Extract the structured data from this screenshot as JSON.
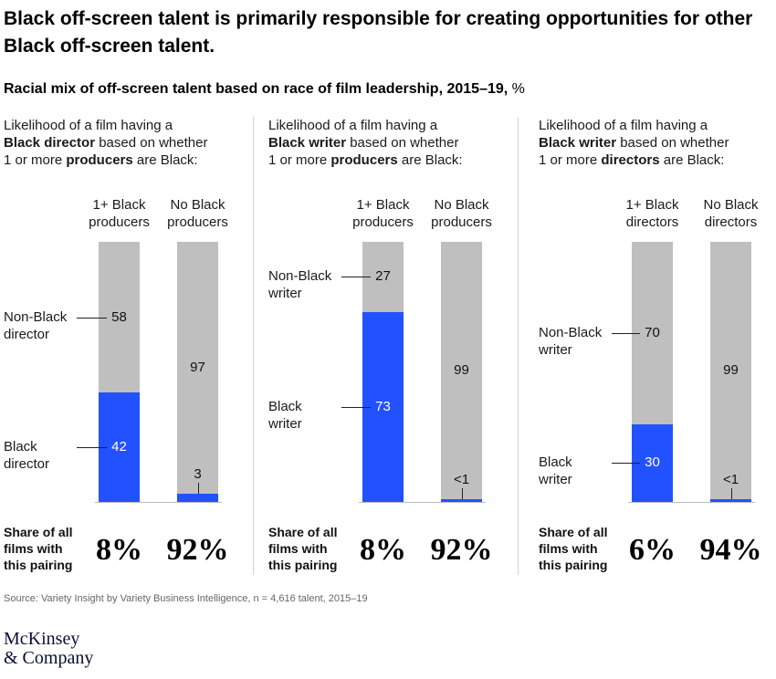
{
  "title": "Black off-screen talent is primarily responsible for creating opportunities for other Black off-screen talent.",
  "subtitle": {
    "bold": "Racial mix of off-screen talent based on race of film leadership, 2015–19,",
    "unit": " %"
  },
  "share_label": [
    "Share of all",
    "films with",
    "this pairing"
  ],
  "source": "Source: Variety Insight by Variety Business Intelligence, n = 4,616 talent, 2015–19",
  "logo": [
    "McKinsey",
    "& Company"
  ],
  "colors": {
    "black_segment": "#2251ff",
    "non_black_segment": "#bfbfbf"
  },
  "chart_data": [
    {
      "type": "bar",
      "stacked": true,
      "description": {
        "l1": "Likelihood of a film having a",
        "l2_bold": "Black director",
        "l2_rest": " based on whether",
        "l3_pre": "1 or more ",
        "l3_bold": "producers",
        "l3_post": " are Black:"
      },
      "categories": [
        [
          "1+ Black",
          "producers"
        ],
        [
          "No Black",
          "producers"
        ]
      ],
      "series": [
        {
          "name": "Non-Black director",
          "label_lines": [
            "Non-Black",
            "director"
          ],
          "values": [
            58,
            97
          ],
          "value_labels": [
            "58",
            "97"
          ]
        },
        {
          "name": "Black director",
          "label_lines": [
            "Black",
            "director"
          ],
          "values": [
            42,
            3
          ],
          "value_labels": [
            "42",
            "3"
          ]
        }
      ],
      "share_of_films": [
        "8%",
        "92%"
      ],
      "ylim": [
        0,
        100
      ]
    },
    {
      "type": "bar",
      "stacked": true,
      "description": {
        "l1": "Likelihood of a film having a",
        "l2_bold": "Black writer",
        "l2_rest": " based on whether",
        "l3_pre": "1 or more ",
        "l3_bold": "producers",
        "l3_post": " are Black:"
      },
      "categories": [
        [
          "1+ Black",
          "producers"
        ],
        [
          "No Black",
          "producers"
        ]
      ],
      "series": [
        {
          "name": "Non-Black writer",
          "label_lines": [
            "Non-Black",
            "writer"
          ],
          "values": [
            27,
            99
          ],
          "value_labels": [
            "27",
            "99"
          ]
        },
        {
          "name": "Black writer",
          "label_lines": [
            "Black",
            "writer"
          ],
          "values": [
            73,
            1
          ],
          "value_labels": [
            "73",
            "<1"
          ]
        }
      ],
      "share_of_films": [
        "8%",
        "92%"
      ],
      "ylim": [
        0,
        100
      ]
    },
    {
      "type": "bar",
      "stacked": true,
      "description": {
        "l1": "Likelihood of a film having a",
        "l2_bold": "Black writer",
        "l2_rest": " based on whether",
        "l3_pre": "1 or more ",
        "l3_bold": "directors",
        "l3_post": " are Black:"
      },
      "categories": [
        [
          "1+ Black",
          "directors"
        ],
        [
          "No Black",
          "directors"
        ]
      ],
      "series": [
        {
          "name": "Non-Black writer",
          "label_lines": [
            "Non-Black",
            "writer"
          ],
          "values": [
            70,
            99
          ],
          "value_labels": [
            "70",
            "99"
          ]
        },
        {
          "name": "Black writer",
          "label_lines": [
            "Black",
            "writer"
          ],
          "values": [
            30,
            1
          ],
          "value_labels": [
            "30",
            "<1"
          ]
        }
      ],
      "share_of_films": [
        "6%",
        "94%"
      ],
      "ylim": [
        0,
        100
      ]
    }
  ]
}
